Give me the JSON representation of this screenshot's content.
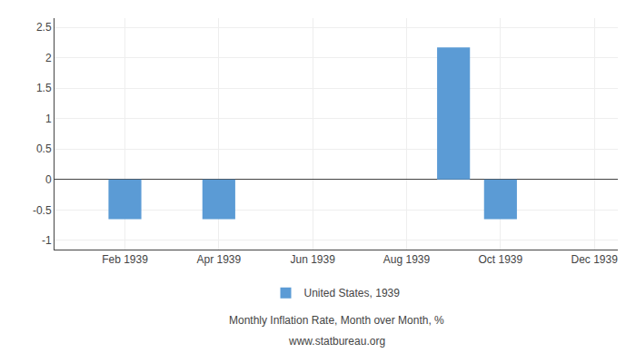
{
  "chart_data": {
    "type": "bar",
    "categories": [
      null,
      "Feb 1939",
      null,
      "Apr 1939",
      null,
      "Jun 1939",
      null,
      "Aug 1939",
      null,
      "Oct 1939",
      null,
      "Dec 1939"
    ],
    "series": [
      {
        "name": "United States, 1939",
        "color": "#5b9bd5",
        "values": [
          0,
          -0.65,
          0,
          -0.65,
          0,
          0,
          0,
          0,
          2.17,
          -0.65,
          0,
          0
        ]
      }
    ],
    "ylim": [
      -1.15,
      2.65
    ],
    "yticks": [
      -1,
      -0.5,
      0,
      0.5,
      1,
      1.5,
      2,
      2.5
    ],
    "grid": true,
    "legend": "bottom",
    "subtitle": "Monthly Inflation Rate, Month over Month, %",
    "annotations": [
      "www.statbureau.org"
    ]
  }
}
